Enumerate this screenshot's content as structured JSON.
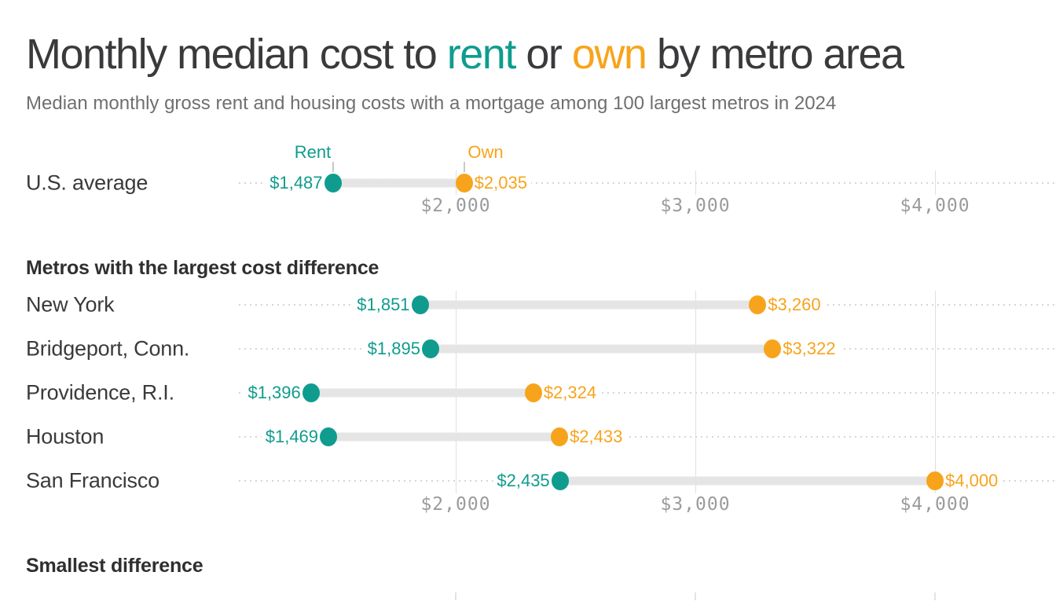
{
  "title": {
    "prefix": "Monthly median cost to ",
    "rent_word": "rent",
    "connector": " or ",
    "own_word": "own",
    "suffix": " by metro area"
  },
  "subtitle": "Median monthly gross rent and housing costs with a mortgage among 100 largest metros in 2024",
  "legend": {
    "rent_label": "Rent",
    "own_label": "Own"
  },
  "colors": {
    "rent": "#0f9c8e",
    "own": "#f7a41c",
    "heading_text": "#3a3a3c",
    "subtitle_text": "#6e6f71",
    "axis_text": "#9a9b9d",
    "gridline": "#e0e0e0",
    "connector_bar": "#e4e4e4",
    "leader_dots": "#d6d6d6"
  },
  "chart_data": {
    "type": "dumbbell",
    "unit": "US dollars per month",
    "series_names": [
      "Rent",
      "Own"
    ],
    "x_axis": {
      "tick_labels": [
        "$2,000",
        "$3,000",
        "$4,000"
      ],
      "tick_values": [
        2000,
        3000,
        4000
      ]
    },
    "sections": [
      {
        "header": "",
        "show_legend": true,
        "rows": [
          {
            "label": "U.S. average",
            "rent": 1487,
            "own": 2035,
            "rent_text": "$1,487",
            "own_text": "$2,035"
          }
        ]
      },
      {
        "header": "Metros with the largest cost difference",
        "show_legend": false,
        "rows": [
          {
            "label": "New York",
            "rent": 1851,
            "own": 3260,
            "rent_text": "$1,851",
            "own_text": "$3,260"
          },
          {
            "label": "Bridgeport, Conn.",
            "rent": 1895,
            "own": 3322,
            "rent_text": "$1,895",
            "own_text": "$3,322"
          },
          {
            "label": "Providence, R.I.",
            "rent": 1396,
            "own": 2324,
            "rent_text": "$1,396",
            "own_text": "$2,324"
          },
          {
            "label": "Houston",
            "rent": 1469,
            "own": 2433,
            "rent_text": "$1,469",
            "own_text": "$2,433"
          },
          {
            "label": "San Francisco",
            "rent": 2435,
            "own": 4000,
            "rent_text": "$2,435",
            "own_text": "$4,000"
          }
        ]
      },
      {
        "header": "Smallest difference",
        "show_legend": false,
        "rows": []
      }
    ]
  }
}
